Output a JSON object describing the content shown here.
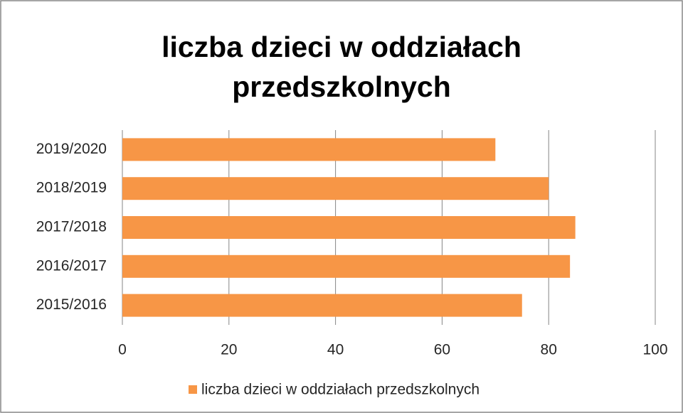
{
  "chart_data": {
    "type": "hbar",
    "title": "liczba dzieci w oddziałach przedszkolnych",
    "categories": [
      "2015/2016",
      "2016/2017",
      "2017/2018",
      "2018/2019",
      "2019/2020"
    ],
    "series": [
      {
        "name": "liczba dzieci w oddziałach przedszkolnych",
        "color": "#f79646",
        "values": [
          75,
          84,
          85,
          80,
          70
        ]
      }
    ],
    "xlim": [
      0,
      100
    ],
    "xticks": [
      0,
      20,
      40,
      60,
      80,
      100
    ],
    "grid": true,
    "legend": "bottom"
  }
}
